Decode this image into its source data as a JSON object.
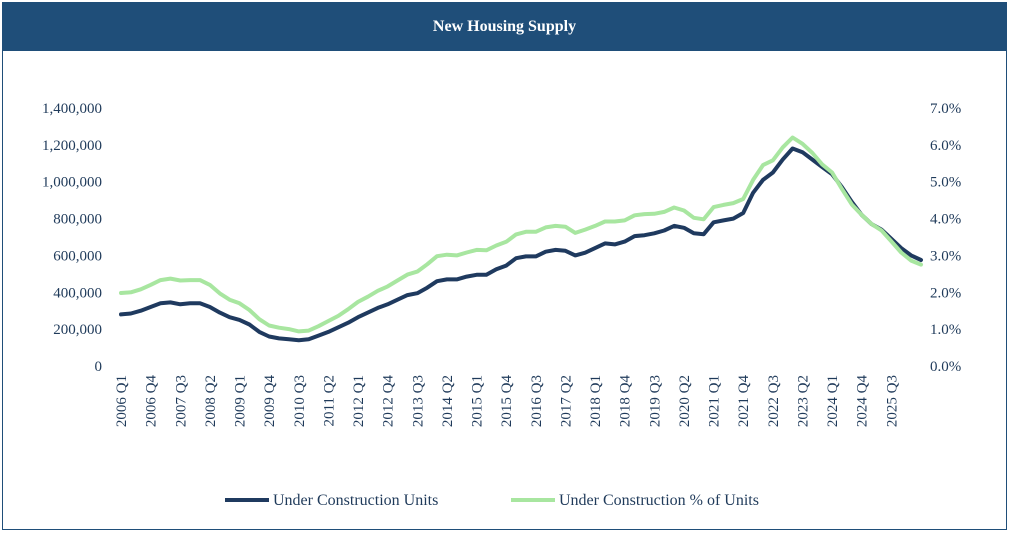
{
  "chart_data": {
    "type": "line",
    "title": "New Housing Supply",
    "x_tick_labels": [
      "2006 Q1",
      "2006 Q4",
      "2007 Q3",
      "2008 Q2",
      "2009 Q1",
      "2009 Q4",
      "2010 Q3",
      "2011 Q2",
      "2012 Q1",
      "2012 Q4",
      "2013 Q3",
      "2014 Q2",
      "2015 Q1",
      "2015 Q4",
      "2016 Q3",
      "2017 Q2",
      "2018 Q1",
      "2018 Q4",
      "2019 Q3",
      "2020 Q2",
      "2021 Q1",
      "2021 Q4",
      "2022 Q3",
      "2023 Q2",
      "2024 Q1",
      "2024 Q4",
      "2025 Q3"
    ],
    "y_left": {
      "ylim": [
        0,
        1400000
      ],
      "tick_labels": [
        "0",
        "200,000",
        "400,000",
        "600,000",
        "800,000",
        "1,000,000",
        "1,200,000",
        "1,400,000"
      ]
    },
    "y_right": {
      "ylim": [
        0,
        7
      ],
      "tick_labels": [
        "0.0%",
        "1.0%",
        "2.0%",
        "3.0%",
        "4.0%",
        "5.0%",
        "6.0%",
        "7.0%"
      ]
    },
    "series": [
      {
        "name": "Under Construction Units",
        "axis": "left",
        "color": "#1f3a5f",
        "values": [
          280000,
          285000,
          300000,
          320000,
          340000,
          345000,
          335000,
          340000,
          340000,
          320000,
          290000,
          265000,
          250000,
          225000,
          185000,
          160000,
          150000,
          145000,
          140000,
          145000,
          165000,
          185000,
          210000,
          235000,
          265000,
          290000,
          315000,
          335000,
          360000,
          385000,
          395000,
          425000,
          460000,
          470000,
          470000,
          485000,
          495000,
          495000,
          525000,
          545000,
          585000,
          595000,
          595000,
          620000,
          630000,
          625000,
          600000,
          615000,
          640000,
          665000,
          660000,
          675000,
          705000,
          710000,
          720000,
          735000,
          760000,
          750000,
          720000,
          715000,
          780000,
          790000,
          800000,
          830000,
          940000,
          1010000,
          1050000,
          1120000,
          1180000,
          1160000,
          1120000,
          1080000,
          1040000,
          970000,
          890000,
          820000,
          770000,
          740000,
          690000,
          640000,
          600000,
          575000
        ]
      },
      {
        "name": "Under Construction % of Units",
        "axis": "right",
        "color": "#a8e6a0",
        "values": [
          1.98,
          2.0,
          2.08,
          2.2,
          2.33,
          2.37,
          2.32,
          2.33,
          2.33,
          2.2,
          1.97,
          1.8,
          1.7,
          1.52,
          1.27,
          1.1,
          1.04,
          1.0,
          0.94,
          0.96,
          1.08,
          1.22,
          1.36,
          1.54,
          1.74,
          1.88,
          2.04,
          2.16,
          2.32,
          2.48,
          2.56,
          2.76,
          2.98,
          3.02,
          3.0,
          3.08,
          3.15,
          3.14,
          3.27,
          3.37,
          3.57,
          3.64,
          3.64,
          3.76,
          3.8,
          3.78,
          3.61,
          3.7,
          3.8,
          3.92,
          3.92,
          3.95,
          4.09,
          4.12,
          4.13,
          4.18,
          4.3,
          4.22,
          4.02,
          3.98,
          4.31,
          4.37,
          4.42,
          4.53,
          5.05,
          5.45,
          5.58,
          5.93,
          6.2,
          6.03,
          5.78,
          5.47,
          5.25,
          4.8,
          4.38,
          4.1,
          3.85,
          3.68,
          3.38,
          3.08,
          2.86,
          2.75
        ]
      }
    ],
    "legend_position": "bottom"
  }
}
